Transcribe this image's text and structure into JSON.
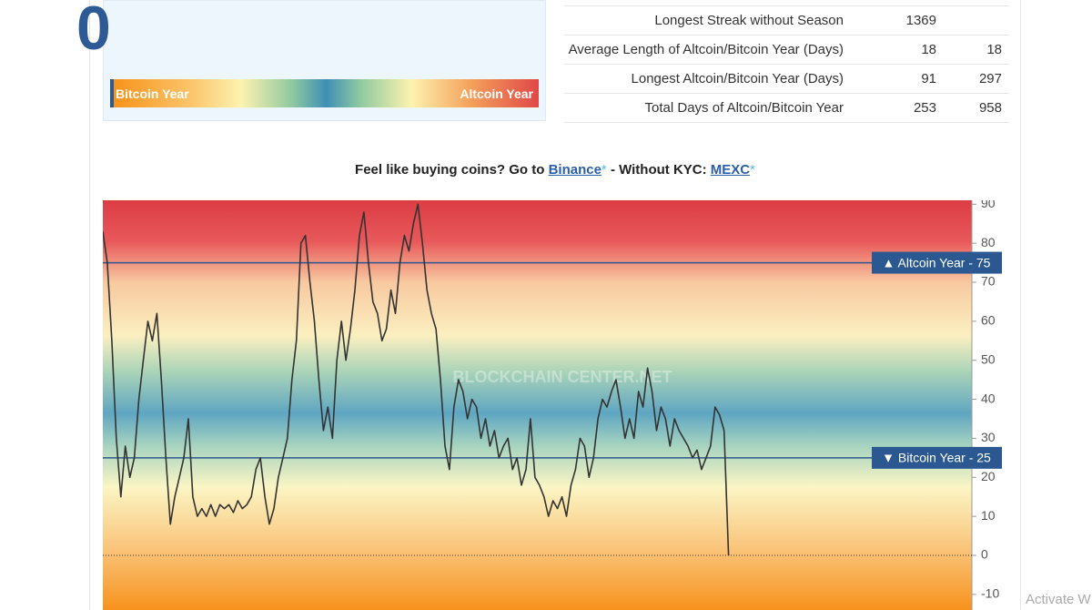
{
  "index": {
    "value": 0
  },
  "gauge": {
    "left_label": "Bitcoin Year",
    "right_label": "Altcoin Year"
  },
  "table": {
    "rows": [
      {
        "label": "Longest Streak without Season",
        "values": [
          1369
        ]
      },
      {
        "label": "Average Length of Altcoin/Bitcoin Year (Days)",
        "values": [
          18,
          18
        ]
      },
      {
        "label": "Longest Altcoin/Bitcoin Year (Days)",
        "values": [
          91,
          297
        ]
      },
      {
        "label": "Total Days of Altcoin/Bitcoin Year",
        "values": [
          253,
          958
        ]
      }
    ]
  },
  "promo": {
    "text": "Feel like buying coins? Go to",
    "link1": "Binance",
    "star1": "*",
    "middle": "- Without KYC:",
    "link2": "MEXC",
    "star2": "*"
  },
  "chart_data": {
    "type": "line",
    "watermark": "BLOCKCHAIN CENTER.NET",
    "ylim": [
      -14,
      91
    ],
    "yticks": [
      -10,
      0,
      10,
      20,
      30,
      40,
      50,
      60,
      70,
      80,
      90
    ],
    "series": [
      {
        "color": "#333333",
        "values": [
          83,
          75,
          55,
          30,
          15,
          28,
          20,
          25,
          40,
          50,
          60,
          55,
          62,
          45,
          25,
          8,
          15,
          20,
          25,
          35,
          15,
          10,
          12,
          10,
          13,
          10,
          13,
          12,
          13,
          11,
          14,
          12,
          13,
          15,
          22,
          25,
          15,
          8,
          12,
          20,
          25,
          30,
          45,
          55,
          80,
          82,
          70,
          60,
          45,
          32,
          38,
          30,
          50,
          60,
          50,
          58,
          68,
          82,
          88,
          75,
          65,
          62,
          55,
          58,
          68,
          62,
          75,
          82,
          78,
          85,
          90,
          80,
          68,
          62,
          58,
          45,
          28,
          22,
          38,
          45,
          42,
          35,
          40,
          38,
          30,
          35,
          28,
          32,
          25,
          28,
          30,
          22,
          25,
          18,
          22,
          35,
          20,
          18,
          15,
          10,
          14,
          12,
          15,
          10,
          18,
          22,
          30,
          28,
          20,
          25,
          35,
          40,
          38,
          42,
          45,
          38,
          30,
          35,
          30,
          42,
          38,
          48,
          42,
          32,
          38,
          35,
          28,
          35,
          32,
          30,
          28,
          25,
          27,
          22,
          25,
          28,
          38,
          36,
          32,
          0
        ]
      }
    ],
    "thresholds": [
      {
        "label": "▲ Altcoin Year - 75",
        "value": 75
      },
      {
        "label": "▼ Bitcoin Year - 25",
        "value": 25
      }
    ]
  },
  "os_watermark": "Activate W"
}
